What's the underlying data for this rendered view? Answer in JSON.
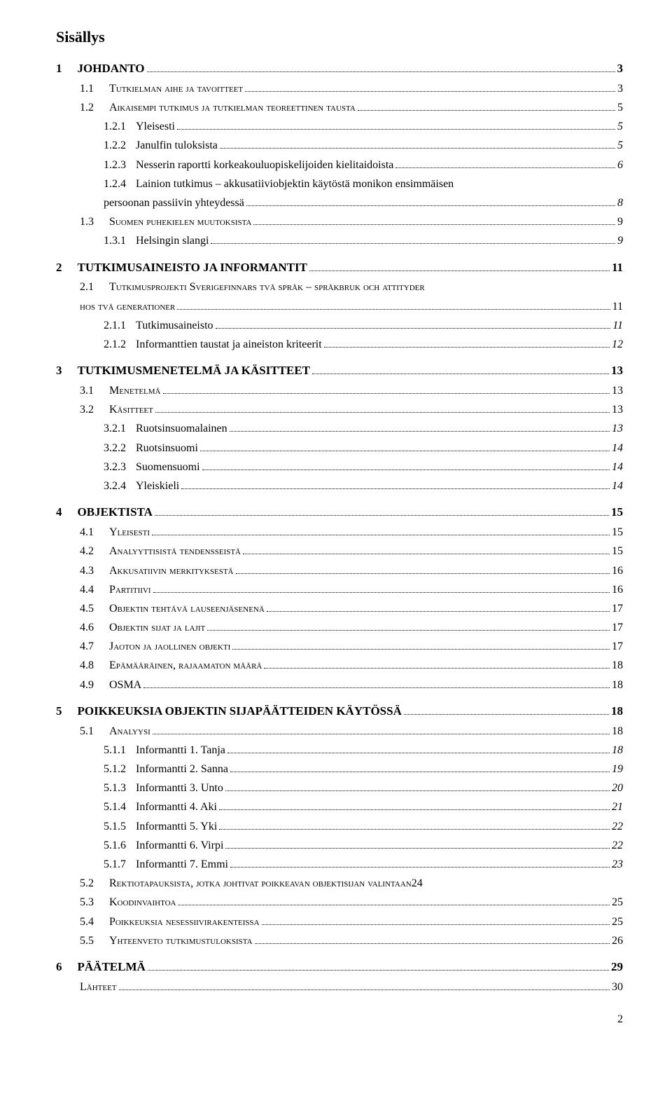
{
  "title": "Sisällys",
  "page_number": "2",
  "entries": [
    {
      "level": "chapter",
      "prefix": "1",
      "text": "JOHDANTO",
      "page": "3"
    },
    {
      "level": "section",
      "prefix": "1.1",
      "text": "Tutkielman aihe ja tavoitteet",
      "page": "3"
    },
    {
      "level": "section",
      "prefix": "1.2",
      "text": "Aikaisempi tutkimus ja tutkielman teoreettinen tausta",
      "page": "5"
    },
    {
      "level": "sub",
      "prefix": "1.2.1",
      "text": "Yleisesti",
      "page": "5",
      "italic_page": true
    },
    {
      "level": "sub",
      "prefix": "1.2.2",
      "text": "Janulfin tuloksista",
      "page": "5",
      "italic_page": true
    },
    {
      "level": "sub",
      "prefix": "1.2.3",
      "text": "Nesserin raportti korkeakouluopiskelijoiden kielitaidoista",
      "page": "6",
      "italic_page": true
    },
    {
      "level": "sub_cont",
      "prefix": "1.2.4",
      "text": "Lainion tutkimus – akkusatiiviobjektin käytöstä monikon ensimmäisen",
      "text2": "persoonan passiivin yhteydessä",
      "page": "8",
      "italic_page": true
    },
    {
      "level": "section",
      "prefix": "1.3",
      "text": "Suomen puhekielen muutoksista",
      "page": "9"
    },
    {
      "level": "sub",
      "prefix": "1.3.1",
      "text": "Helsingin slangi",
      "page": "9",
      "italic_page": true
    },
    {
      "level": "chapter",
      "prefix": "2",
      "text": "TUTKIMUSAINEISTO JA INFORMANTIT",
      "page": "11"
    },
    {
      "level": "section",
      "prefix": "2.1",
      "text": "Tutkimusprojekti Sverigefinnars två språk – språkbruk och attityder",
      "text2_sc": "hos två generationer",
      "page": "11"
    },
    {
      "level": "sub",
      "prefix": "2.1.1",
      "text": "Tutkimusaineisto",
      "page": "11",
      "italic_page": true
    },
    {
      "level": "sub",
      "prefix": "2.1.2",
      "text": "Informanttien taustat ja aineiston kriteerit",
      "page": "12",
      "italic_page": true
    },
    {
      "level": "chapter",
      "prefix": "3",
      "text": "TUTKIMUSMENETELMÄ JA KÄSITTEET",
      "page": "13"
    },
    {
      "level": "section",
      "prefix": "3.1",
      "text": "Menetelmä",
      "page": "13"
    },
    {
      "level": "section",
      "prefix": "3.2",
      "text": "Käsitteet",
      "page": "13"
    },
    {
      "level": "sub",
      "prefix": "3.2.1",
      "text": "Ruotsinsuomalainen",
      "page": "13",
      "italic_page": true
    },
    {
      "level": "sub",
      "prefix": "3.2.2",
      "text": "Ruotsinsuomi",
      "page": "14",
      "italic_page": true
    },
    {
      "level": "sub",
      "prefix": "3.2.3",
      "text": "Suomensuomi",
      "page": "14",
      "italic_page": true
    },
    {
      "level": "sub",
      "prefix": "3.2.4",
      "text": "Yleiskieli",
      "page": "14",
      "italic_page": true
    },
    {
      "level": "chapter",
      "prefix": "4",
      "text": "OBJEKTISTA",
      "page": "15"
    },
    {
      "level": "section",
      "prefix": "4.1",
      "text": "Yleisesti",
      "page": "15"
    },
    {
      "level": "section",
      "prefix": "4.2",
      "text": "Analyyttisistä tendensseistä",
      "page": "15"
    },
    {
      "level": "section",
      "prefix": "4.3",
      "text": "Akkusatiivin merkityksestä",
      "page": "16"
    },
    {
      "level": "section",
      "prefix": "4.4",
      "text": "Partitiivi",
      "page": "16"
    },
    {
      "level": "section",
      "prefix": "4.5",
      "text": "Objektin tehtävä lauseenjäsenenä",
      "page": "17"
    },
    {
      "level": "section",
      "prefix": "4.6",
      "text": "Objektin sijat ja lajit",
      "page": "17"
    },
    {
      "level": "section",
      "prefix": "4.7",
      "text": "Jaoton ja jaollinen objekti",
      "page": "17"
    },
    {
      "level": "section",
      "prefix": "4.8",
      "text": "Epämääräinen, rajaamaton määrä",
      "page": "18"
    },
    {
      "level": "section",
      "prefix": "4.9",
      "text": "OSMA",
      "page": "18",
      "no_sc": true
    },
    {
      "level": "chapter",
      "prefix": "5",
      "text": "POIKKEUKSIA OBJEKTIN SIJAPÄÄTTEIDEN KÄYTÖSSÄ",
      "page": "18"
    },
    {
      "level": "section",
      "prefix": "5.1",
      "text": "Analyysi",
      "page": "18"
    },
    {
      "level": "sub",
      "prefix": "5.1.1",
      "text": "Informantti 1. Tanja",
      "page": "18",
      "italic_page": true
    },
    {
      "level": "sub",
      "prefix": "5.1.2",
      "text": "Informantti 2. Sanna",
      "page": "19",
      "italic_page": true
    },
    {
      "level": "sub",
      "prefix": "5.1.3",
      "text": "Informantti 3. Unto",
      "page": "20",
      "italic_page": true
    },
    {
      "level": "sub",
      "prefix": "5.1.4",
      "text": "Informantti 4. Aki",
      "page": "21",
      "italic_page": true
    },
    {
      "level": "sub",
      "prefix": "5.1.5",
      "text": "Informantti 5. Yki",
      "page": "22",
      "italic_page": true
    },
    {
      "level": "sub",
      "prefix": "5.1.6",
      "text": "Informantti 6. Virpi",
      "page": "22",
      "italic_page": true
    },
    {
      "level": "sub",
      "prefix": "5.1.7",
      "text": "Informantti 7. Emmi",
      "page": "23",
      "italic_page": true
    },
    {
      "level": "section_inline",
      "prefix": "5.2",
      "text": "Rektiotapauksista, jotka johtivat poikkeavan objektisijan valintaan",
      "page": "24"
    },
    {
      "level": "section",
      "prefix": "5.3",
      "text": "Koodinvaihtoa",
      "page": "25"
    },
    {
      "level": "section",
      "prefix": "5.4",
      "text": "Poikkeuksia nesessiivirakenteissa",
      "page": "25"
    },
    {
      "level": "section",
      "prefix": "5.5",
      "text": "Yhteenveto tutkimustuloksista",
      "page": "26"
    },
    {
      "level": "chapter",
      "prefix": "6",
      "text": "PÄÄTELMÄ",
      "page": "29"
    },
    {
      "level": "section_plain",
      "prefix": "",
      "text": "Lähteet",
      "page": "30"
    }
  ]
}
